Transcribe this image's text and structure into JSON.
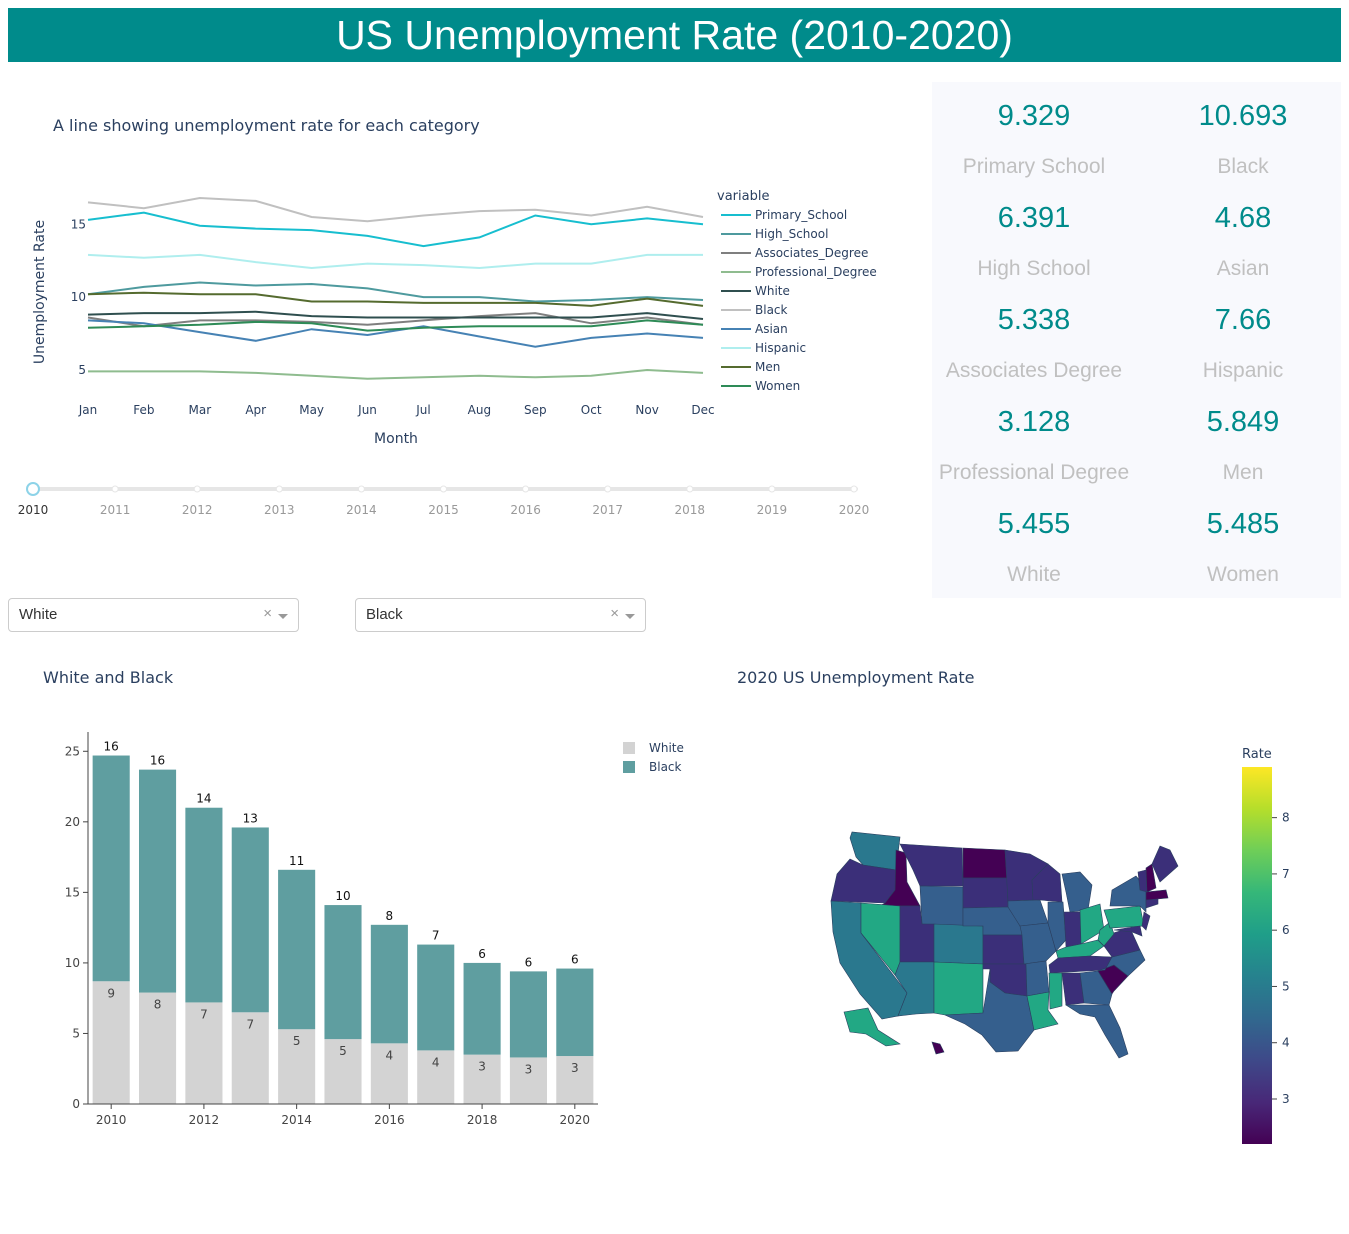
{
  "header": {
    "title": "US Unemployment Rate (2010-2020)"
  },
  "stats": [
    {
      "value": "9.329",
      "label": "Primary School"
    },
    {
      "value": "10.693",
      "label": "Black"
    },
    {
      "value": "6.391",
      "label": "High School"
    },
    {
      "value": "4.68",
      "label": "Asian"
    },
    {
      "value": "5.338",
      "label": "Associates Degree"
    },
    {
      "value": "7.66",
      "label": "Hispanic"
    },
    {
      "value": "3.128",
      "label": "Professional Degree"
    },
    {
      "value": "5.849",
      "label": "Men"
    },
    {
      "value": "5.455",
      "label": "White"
    },
    {
      "value": "5.485",
      "label": "Women"
    }
  ],
  "dropdowns": [
    {
      "value": "White",
      "clear": "×"
    },
    {
      "value": "Black",
      "clear": "×"
    }
  ],
  "slider": {
    "years": [
      "2010",
      "2011",
      "2012",
      "2013",
      "2014",
      "2015",
      "2016",
      "2017",
      "2018",
      "2019",
      "2020"
    ],
    "selected_index": 0,
    "color": "#8dd3e8"
  },
  "chart_data": [
    {
      "type": "line",
      "title": "A line showing unemployment rate for each category",
      "xlabel": "Month",
      "ylabel": "Unemployment Rate",
      "categories": [
        "Jan",
        "Feb",
        "Mar",
        "Apr",
        "May",
        "Jun",
        "Jul",
        "Aug",
        "Sep",
        "Oct",
        "Nov",
        "Dec"
      ],
      "ylim": [
        3.9,
        17.9
      ],
      "yticks": [
        5,
        10,
        15
      ],
      "legend_title": "variable",
      "legend_position": "right",
      "series": [
        {
          "name": "Primary_School",
          "color": "#17becf",
          "values": [
            15.3,
            15.8,
            14.9,
            14.7,
            14.6,
            14.2,
            13.5,
            14.1,
            15.6,
            15.0,
            15.4,
            15.0
          ]
        },
        {
          "name": "High_School",
          "color": "#4e9a9e",
          "values": [
            10.2,
            10.7,
            11.0,
            10.8,
            10.9,
            10.6,
            10.0,
            10.0,
            9.7,
            9.8,
            10.0,
            9.8
          ]
        },
        {
          "name": "Associates_Degree",
          "color": "#7f7f7f",
          "values": [
            8.6,
            8.0,
            8.4,
            8.4,
            8.3,
            8.1,
            8.4,
            8.7,
            8.9,
            8.2,
            8.6,
            8.1
          ]
        },
        {
          "name": "Professional_Degree",
          "color": "#8fbc8f",
          "values": [
            4.9,
            4.9,
            4.9,
            4.8,
            4.6,
            4.4,
            4.5,
            4.6,
            4.5,
            4.6,
            5.0,
            4.8
          ]
        },
        {
          "name": "White",
          "color": "#2f4f4f",
          "values": [
            8.8,
            8.9,
            8.9,
            9.0,
            8.7,
            8.6,
            8.6,
            8.6,
            8.6,
            8.6,
            8.9,
            8.5
          ]
        },
        {
          "name": "Black",
          "color": "#c0c0c0",
          "values": [
            16.5,
            16.1,
            16.8,
            16.6,
            15.5,
            15.2,
            15.6,
            15.9,
            16.0,
            15.6,
            16.2,
            15.5
          ]
        },
        {
          "name": "Asian",
          "color": "#4682b4",
          "values": [
            8.4,
            8.2,
            7.6,
            7.0,
            7.8,
            7.4,
            8.0,
            7.3,
            6.6,
            7.2,
            7.5,
            7.2
          ]
        },
        {
          "name": "Hispanic",
          "color": "#afeeee",
          "values": [
            12.9,
            12.7,
            12.9,
            12.4,
            12.0,
            12.3,
            12.2,
            12.0,
            12.3,
            12.3,
            12.9,
            12.9
          ]
        },
        {
          "name": "Men",
          "color": "#556b2f",
          "values": [
            10.2,
            10.3,
            10.2,
            10.2,
            9.7,
            9.7,
            9.6,
            9.6,
            9.6,
            9.4,
            9.9,
            9.4
          ]
        },
        {
          "name": "Women",
          "color": "#2e8b57",
          "values": [
            7.9,
            8.0,
            8.1,
            8.3,
            8.2,
            7.7,
            7.9,
            8.0,
            8.0,
            8.0,
            8.4,
            8.1
          ]
        }
      ]
    },
    {
      "type": "bar",
      "title": "White and Black",
      "barmode": "stack",
      "categories": [
        2010,
        2011,
        2012,
        2013,
        2014,
        2015,
        2016,
        2017,
        2018,
        2019,
        2020
      ],
      "xticks": [
        2010,
        2012,
        2014,
        2016,
        2018,
        2020
      ],
      "ylim": [
        0,
        25.8
      ],
      "yticks": [
        0,
        5,
        10,
        15,
        20,
        25
      ],
      "legend_position": "top-right",
      "series": [
        {
          "name": "White",
          "color": "#d3d3d3",
          "values": [
            8.7,
            7.9,
            7.2,
            6.5,
            5.3,
            4.6,
            4.3,
            3.8,
            3.5,
            3.3,
            3.4
          ],
          "labels": [
            "9",
            "8",
            "7",
            "7",
            "5",
            "5",
            "4",
            "4",
            "3",
            "3",
            "3"
          ]
        },
        {
          "name": "Black",
          "color": "#5f9ea0",
          "values": [
            16.0,
            15.8,
            13.8,
            13.1,
            11.3,
            9.5,
            8.4,
            7.5,
            6.5,
            6.1,
            6.2
          ],
          "labels": [
            "16",
            "16",
            "14",
            "13",
            "11",
            "10",
            "8",
            "7",
            "6",
            "6",
            "6"
          ]
        }
      ]
    },
    {
      "type": "choropleth",
      "title": "2020 US Unemployment Rate",
      "colorbar_title": "Rate",
      "colorbar_ticks": [
        3,
        4,
        5,
        6,
        7,
        8
      ],
      "range": [
        2.2,
        8.9
      ],
      "colorscale": [
        "#440154",
        "#482878",
        "#3e4989",
        "#31688e",
        "#26828e",
        "#1f9e89",
        "#35b779",
        "#6ece58",
        "#b5de2b",
        "#fde725"
      ]
    }
  ]
}
